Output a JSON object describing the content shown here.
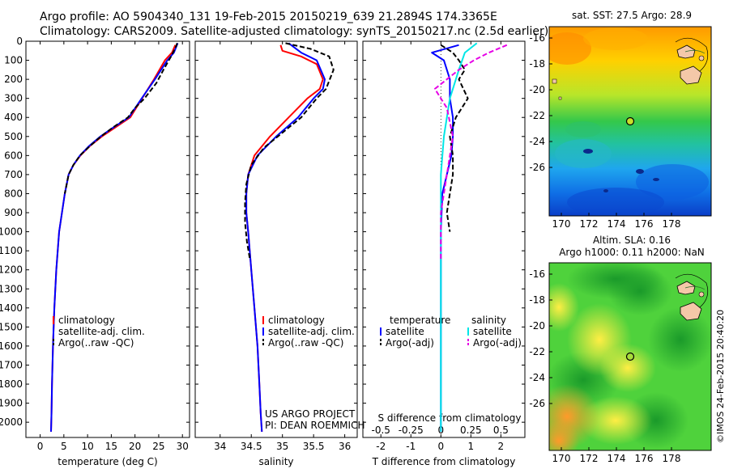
{
  "header": {
    "line1": "Argo profile: AO 5904340_131 19-Feb-2015 20150219_639 21.2894S 174.3365E",
    "line2": "Climatology: CARS2009. Satellite-adjusted climatology: synTS_20150217.nc (2.5d earlier)"
  },
  "colors": {
    "climatology": "#ff0000",
    "satellite": "#0000ff",
    "argo": "#000000",
    "salinity_sat": "#00e6e6",
    "salinity_argo": "#e600e6"
  },
  "chart_data": [
    {
      "type": "line",
      "id": "temperature",
      "xlabel": "temperature (deg C)",
      "ylabel": "",
      "xlim": [
        -3,
        31.5
      ],
      "ylim": [
        2080,
        0
      ],
      "xticks": [
        0,
        5,
        10,
        15,
        20,
        25,
        30
      ],
      "yticks": [
        0,
        100,
        200,
        300,
        400,
        500,
        600,
        700,
        800,
        900,
        1000,
        1100,
        1200,
        1300,
        1400,
        1500,
        1600,
        1700,
        1800,
        1900,
        2000
      ],
      "legend": [
        "climatology",
        "satellite-adj. clim.",
        "Argo(..raw -QC)"
      ],
      "series": [
        {
          "name": "climatology",
          "color": "climatology",
          "dash": "",
          "x": [
            28.5,
            27.8,
            26.3,
            24.0,
            21.5,
            19.0,
            16.0,
            13.0,
            10.5,
            8.5,
            7.0,
            6.0,
            5.2,
            4.6,
            4.0,
            3.4,
            3.0,
            2.7,
            2.5,
            2.4,
            2.3
          ],
          "y": [
            20,
            60,
            100,
            200,
            300,
            400,
            450,
            500,
            550,
            600,
            650,
            700,
            800,
            900,
            1000,
            1200,
            1400,
            1600,
            1800,
            1950,
            2050
          ]
        },
        {
          "name": "satellite-adj. clim.",
          "color": "satellite",
          "dash": "",
          "x": [
            29.0,
            28.2,
            26.8,
            24.2,
            21.4,
            18.7,
            15.6,
            12.7,
            10.3,
            8.4,
            7.0,
            6.0,
            5.2,
            4.6,
            4.0,
            3.4,
            3.0,
            2.7,
            2.5,
            2.4,
            2.3
          ],
          "y": [
            10,
            60,
            100,
            200,
            300,
            400,
            450,
            500,
            550,
            600,
            650,
            700,
            800,
            900,
            1000,
            1200,
            1400,
            1600,
            1800,
            1950,
            2050
          ]
        },
        {
          "name": "Argo(..raw -QC)",
          "color": "argo",
          "dash": "6,3",
          "x": [
            28.9,
            28.6,
            27.6,
            26.0,
            24.5,
            22.0,
            20.0,
            18.5,
            15.5,
            12.8,
            10.5,
            8.4,
            7.0,
            6.0,
            5.2
          ],
          "y": [
            10,
            30,
            80,
            150,
            220,
            300,
            350,
            400,
            450,
            500,
            550,
            600,
            650,
            700,
            800
          ]
        }
      ]
    },
    {
      "type": "line",
      "id": "salinity",
      "xlabel": "salinity",
      "ylabel": "",
      "xlim": [
        33.6,
        36.2
      ],
      "ylim": [
        2080,
        0
      ],
      "xticks": [
        34,
        34.5,
        35,
        35.5,
        36
      ],
      "yticks": [],
      "legend": [
        "climatology",
        "satellite-adj. clim.",
        "Argo(..raw -QC)"
      ],
      "series": [
        {
          "name": "climatology",
          "color": "climatology",
          "dash": "",
          "x": [
            34.97,
            35.0,
            35.3,
            35.55,
            35.65,
            35.6,
            35.4,
            35.1,
            34.8,
            34.55,
            34.45,
            34.42,
            34.42,
            34.45,
            34.5,
            34.55,
            34.6,
            34.63,
            34.65,
            34.67
          ],
          "y": [
            20,
            50,
            80,
            120,
            200,
            250,
            300,
            400,
            500,
            600,
            700,
            800,
            900,
            1000,
            1200,
            1400,
            1600,
            1800,
            1950,
            2050
          ]
        },
        {
          "name": "satellite-adj. clim.",
          "color": "satellite",
          "dash": "",
          "x": [
            35.1,
            35.3,
            35.55,
            35.68,
            35.65,
            35.5,
            35.25,
            34.9,
            34.6,
            34.45,
            34.42,
            34.42,
            34.45,
            34.5,
            34.55,
            34.6,
            34.63,
            34.65,
            34.67
          ],
          "y": [
            10,
            60,
            100,
            200,
            250,
            300,
            400,
            500,
            600,
            700,
            800,
            900,
            1000,
            1200,
            1400,
            1600,
            1800,
            1950,
            2050
          ]
        },
        {
          "name": "Argo(..raw -QC)",
          "color": "argo",
          "dash": "6,3",
          "x": [
            35.05,
            35.45,
            35.75,
            35.82,
            35.7,
            35.55,
            35.3,
            35.0,
            34.7,
            34.5,
            34.42,
            34.4,
            34.4,
            34.43,
            34.48
          ],
          "y": [
            10,
            40,
            80,
            150,
            250,
            300,
            400,
            480,
            560,
            650,
            750,
            850,
            950,
            1050,
            1150
          ]
        }
      ]
    },
    {
      "type": "line",
      "id": "difference",
      "xlabel": "T difference from climatology",
      "xlabel_top": "S difference from climatology",
      "xlim": [
        -2.6,
        2.8
      ],
      "ylim": [
        2080,
        0
      ],
      "xticks": [
        -2,
        -1,
        0,
        1,
        2
      ],
      "xticks_top_labels": [
        "-0.5",
        "-0.25",
        "0",
        "0.25",
        "0.5"
      ],
      "xticks_top_values": [
        -2,
        -1,
        0,
        1,
        2
      ],
      "yticks": [],
      "legend_titles": [
        "temperature",
        "salinity"
      ],
      "legend": [
        "satellite",
        "Argo(-adj)",
        "satellite",
        "Argo(-adj)"
      ],
      "series": [
        {
          "name": "satellite",
          "quantity": "temperature",
          "color": "satellite",
          "dash": "",
          "x": [
            0.6,
            -0.3,
            0.1,
            0.3,
            0.3,
            0.4,
            0.4,
            0.35,
            0.2,
            0.05,
            0.0,
            0.0,
            0.0
          ],
          "y": [
            20,
            60,
            100,
            200,
            300,
            400,
            500,
            600,
            700,
            800,
            1000,
            1400,
            2050
          ]
        },
        {
          "name": "Argo(-adj)",
          "quantity": "temperature",
          "color": "argo",
          "dash": "6,3",
          "x": [
            0.0,
            0.4,
            0.6,
            0.8,
            0.6,
            0.9,
            0.5,
            0.3,
            0.4,
            0.4,
            0.3,
            0.2,
            0.3
          ],
          "y": [
            20,
            60,
            100,
            150,
            200,
            300,
            400,
            500,
            600,
            700,
            800,
            900,
            1000
          ]
        },
        {
          "name": "satellite",
          "quantity": "salinity",
          "color": "salinity_sat",
          "dash": "",
          "x": [
            1.2,
            0.8,
            0.6,
            0.3,
            0.1,
            0.0,
            0.0,
            0.0,
            0.0
          ],
          "y": [
            10,
            60,
            150,
            300,
            500,
            700,
            1000,
            1400,
            2050
          ]
        },
        {
          "name": "Argo(-adj)",
          "quantity": "salinity",
          "color": "salinity_argo",
          "dash": "6,3",
          "x": [
            2.2,
            1.6,
            1.1,
            0.6,
            -0.2,
            0.2,
            0.4,
            0.2,
            0.0,
            0.0,
            0.0
          ],
          "y": [
            20,
            60,
            100,
            150,
            250,
            350,
            500,
            700,
            900,
            1100,
            1150
          ]
        }
      ]
    }
  ],
  "maps": {
    "sst_title": "sat. SST: 27.5 Argo: 28.9",
    "sla_title1": "Altim. SLA: 0.16",
    "sla_title2": "Argo h1000: 0.11 h2000: NaN",
    "xticks": [
      "170",
      "172",
      "174",
      "176",
      "178"
    ],
    "yticks": [
      "-16",
      "-18",
      "-20",
      "-22",
      "-24",
      "-26"
    ],
    "argo_marker": {
      "lon": 174.34,
      "lat": -21.29
    }
  },
  "credits": {
    "project": "US ARGO PROJECT",
    "pi": "PI: DEAN ROEMMICH",
    "stamp": "©IMOS 24-Feb-2015 20:40:20"
  }
}
